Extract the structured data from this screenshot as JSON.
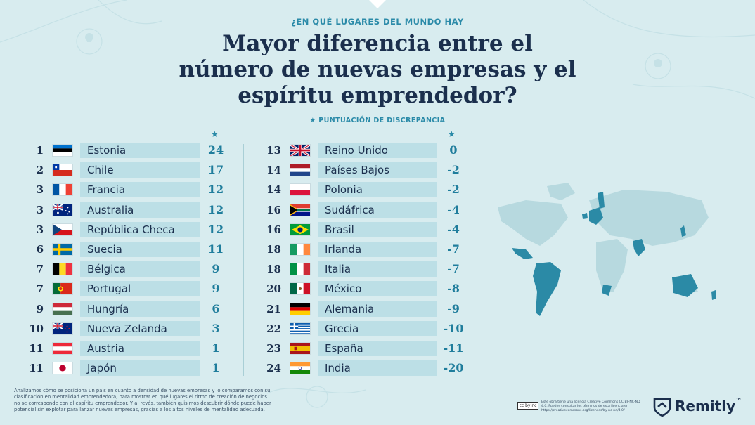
{
  "header": {
    "subtitle": "¿EN QUÉ LUGARES DEL MUNDO HAY",
    "title_lines": [
      "Mayor diferencia entre el",
      "número de nuevas empresas y el",
      "espíritu emprendedor?"
    ],
    "legend_star": "★",
    "legend_label": "PUNTUACIÓN DE DISCREPANCIA",
    "column_star": "★"
  },
  "chart_data": {
    "type": "table",
    "columns": [
      "rank",
      "country",
      "score"
    ],
    "rows": [
      {
        "rank": "1",
        "country": "Estonia",
        "score": "24",
        "flag": "ee"
      },
      {
        "rank": "2",
        "country": "Chile",
        "score": "17",
        "flag": "cl"
      },
      {
        "rank": "3",
        "country": "Francia",
        "score": "12",
        "flag": "fr"
      },
      {
        "rank": "3",
        "country": "Australia",
        "score": "12",
        "flag": "au"
      },
      {
        "rank": "3",
        "country": "República Checa",
        "score": "12",
        "flag": "cz"
      },
      {
        "rank": "6",
        "country": "Suecia",
        "score": "11",
        "flag": "se"
      },
      {
        "rank": "7",
        "country": "Bélgica",
        "score": "9",
        "flag": "be"
      },
      {
        "rank": "7",
        "country": "Portugal",
        "score": "9",
        "flag": "pt"
      },
      {
        "rank": "9",
        "country": "Hungría",
        "score": "6",
        "flag": "hu"
      },
      {
        "rank": "10",
        "country": "Nueva Zelanda",
        "score": "3",
        "flag": "nz"
      },
      {
        "rank": "11",
        "country": "Austria",
        "score": "1",
        "flag": "at"
      },
      {
        "rank": "11",
        "country": "Japón",
        "score": "1",
        "flag": "jp"
      },
      {
        "rank": "13",
        "country": "Reino Unido",
        "score": "0",
        "flag": "gb"
      },
      {
        "rank": "14",
        "country": "Países Bajos",
        "score": "-2",
        "flag": "nl"
      },
      {
        "rank": "14",
        "country": "Polonia",
        "score": "-2",
        "flag": "pl"
      },
      {
        "rank": "16",
        "country": "Sudáfrica",
        "score": "-4",
        "flag": "za"
      },
      {
        "rank": "16",
        "country": "Brasil",
        "score": "-4",
        "flag": "br"
      },
      {
        "rank": "18",
        "country": "Irlanda",
        "score": "-7",
        "flag": "ie"
      },
      {
        "rank": "18",
        "country": "Italia",
        "score": "-7",
        "flag": "it"
      },
      {
        "rank": "20",
        "country": "México",
        "score": "-8",
        "flag": "mx"
      },
      {
        "rank": "21",
        "country": "Alemania",
        "score": "-9",
        "flag": "de"
      },
      {
        "rank": "22",
        "country": "Grecia",
        "score": "-10",
        "flag": "gr"
      },
      {
        "rank": "23",
        "country": "España",
        "score": "-11",
        "flag": "es"
      },
      {
        "rank": "24",
        "country": "India",
        "score": "-20",
        "flag": "in"
      }
    ]
  },
  "footnote": "Analizamos cómo se posiciona un país en cuanto a densidad de nuevas empresas y lo comparamos con su clasificación en mentalidad emprendedora, para mostrar en qué lugares el ritmo de creación de negocios no se corresponde con el espíritu emprendedor. Y al revés, también quisimos descubrir dónde puede haber potencial sin explotar para lanzar nuevas empresas, gracias a los altos niveles de mentalidad adecuada.",
  "license": {
    "badge": "cc by nc",
    "text": "Este obra tiene una licencia Creative Commons CC BY-NC-ND 4.0. Puedes consultar los términos de esta licencia en https://creativecommons.org/licenses/by-nc-nd/4.0/"
  },
  "brand": {
    "name": "Remitly",
    "mark": "™"
  },
  "colors": {
    "background": "#d8ecef",
    "bar": "#bcdfe6",
    "accent": "#2a8aa8",
    "score": "#1f7d9c",
    "dark": "#1b2f4d",
    "map_land": "#b7d9df",
    "map_highlight": "#2b8aa6"
  }
}
